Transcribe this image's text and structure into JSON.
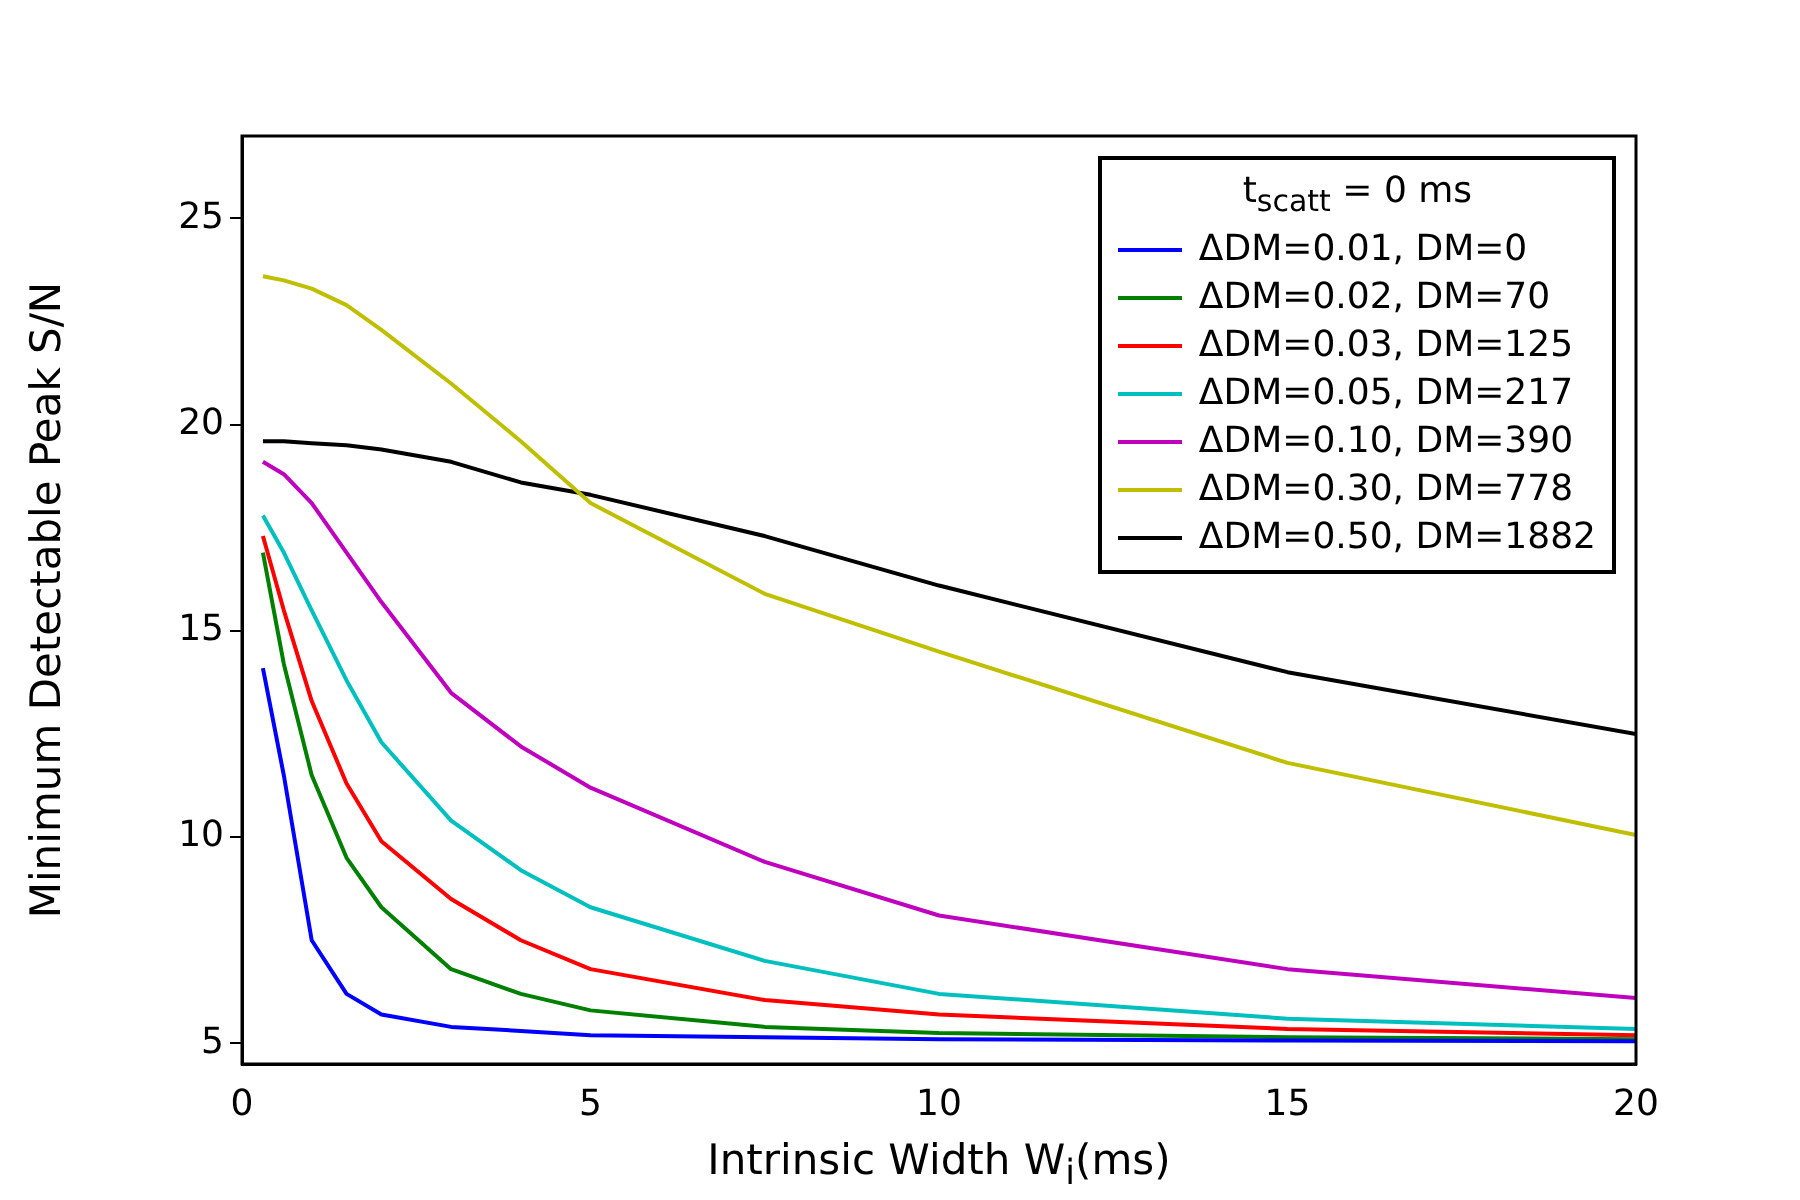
{
  "chart_data": {
    "type": "line",
    "xlabel": "Intrinsic Width W$_{i}$(ms)",
    "ylabel": "Minimum Detectable Peak S/N",
    "legend_title": "t$_{scatt}$ = 0 ms",
    "x": [
      0.3,
      0.6,
      1,
      1.5,
      2,
      3,
      4,
      5,
      7.5,
      10,
      15,
      20
    ],
    "series": [
      {
        "name": "ΔDM=0.01, DM=0",
        "color": "#0000ff",
        "values": [
          14.1,
          11.5,
          7.5,
          6.2,
          5.7,
          5.4,
          5.3,
          5.2,
          5.15,
          5.1,
          5.07,
          5.05
        ]
      },
      {
        "name": "ΔDM=0.02, DM=70",
        "color": "#008000",
        "values": [
          16.9,
          14.2,
          11.5,
          9.5,
          8.3,
          6.8,
          6.2,
          5.8,
          5.4,
          5.25,
          5.15,
          5.1
        ]
      },
      {
        "name": "ΔDM=0.03, DM=125",
        "color": "#ff0000",
        "values": [
          17.3,
          15.5,
          13.3,
          11.3,
          9.9,
          8.5,
          7.5,
          6.8,
          6.05,
          5.7,
          5.35,
          5.2
        ]
      },
      {
        "name": "ΔDM=0.05, DM=217",
        "color": "#00bfbf",
        "values": [
          17.8,
          16.9,
          15.5,
          13.8,
          12.3,
          10.4,
          9.2,
          8.3,
          7.0,
          6.2,
          5.6,
          5.35
        ]
      },
      {
        "name": "ΔDM=0.10, DM=390",
        "color": "#bf00bf",
        "values": [
          19.1,
          18.8,
          18.1,
          16.9,
          15.7,
          13.5,
          12.2,
          11.2,
          9.4,
          8.1,
          6.8,
          6.1
        ]
      },
      {
        "name": "ΔDM=0.30, DM=778",
        "color": "#bfbf00",
        "values": [
          23.6,
          23.5,
          23.3,
          22.9,
          22.3,
          21.0,
          19.6,
          18.1,
          15.9,
          14.5,
          11.8,
          10.05
        ]
      },
      {
        "name": "ΔDM=0.50, DM=1882",
        "color": "#000000",
        "values": [
          19.6,
          19.6,
          19.55,
          19.5,
          19.4,
          19.1,
          18.6,
          18.3,
          17.3,
          16.1,
          14.0,
          12.5
        ]
      }
    ],
    "xlim": [
      0,
      20
    ],
    "xticks": [
      0,
      5,
      10,
      15,
      20
    ],
    "ylim": [
      4.5,
      27
    ],
    "yticks": [
      5,
      10,
      15,
      20,
      25
    ],
    "legend": "top right",
    "grid": false
  }
}
